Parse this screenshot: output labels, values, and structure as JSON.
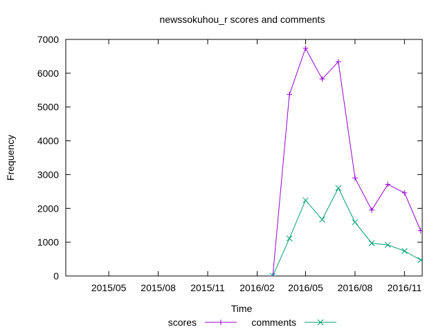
{
  "chart_data": {
    "type": "line",
    "title": "newssokuhou_r scores and comments",
    "xlabel": "Time",
    "ylabel": "Frequency",
    "ylim": [
      0,
      7000
    ],
    "yticks": [
      0,
      1000,
      2000,
      3000,
      4000,
      5000,
      6000,
      7000
    ],
    "xlim": [
      "2015-02-10",
      "2016-12-04"
    ],
    "xticks": [
      {
        "label": "2015/05",
        "date": "2015-05-01"
      },
      {
        "label": "2015/08",
        "date": "2015-08-01"
      },
      {
        "label": "2015/11",
        "date": "2015-11-01"
      },
      {
        "label": "2016/02",
        "date": "2016-02-01"
      },
      {
        "label": "2016/05",
        "date": "2016-05-01"
      },
      {
        "label": "2016/08",
        "date": "2016-08-01"
      },
      {
        "label": "2016/11",
        "date": "2016-11-01"
      }
    ],
    "grid": false,
    "legend_position": "bottom",
    "x": [
      "2016-03-01",
      "2016-04-01",
      "2016-05-01",
      "2016-06-01",
      "2016-07-01",
      "2016-08-01",
      "2016-09-01",
      "2016-10-01",
      "2016-11-01",
      "2016-12-01"
    ],
    "series": [
      {
        "name": "scores",
        "color": "#9400d3",
        "marker": "plus",
        "values": [
          0,
          5370,
          6740,
          5830,
          6340,
          2900,
          1950,
          2710,
          2460,
          1340
        ]
      },
      {
        "name": "comments",
        "color": "#009e73",
        "marker": "cross",
        "values": [
          0,
          1110,
          2240,
          1670,
          2600,
          1590,
          970,
          920,
          740,
          470
        ]
      }
    ]
  }
}
